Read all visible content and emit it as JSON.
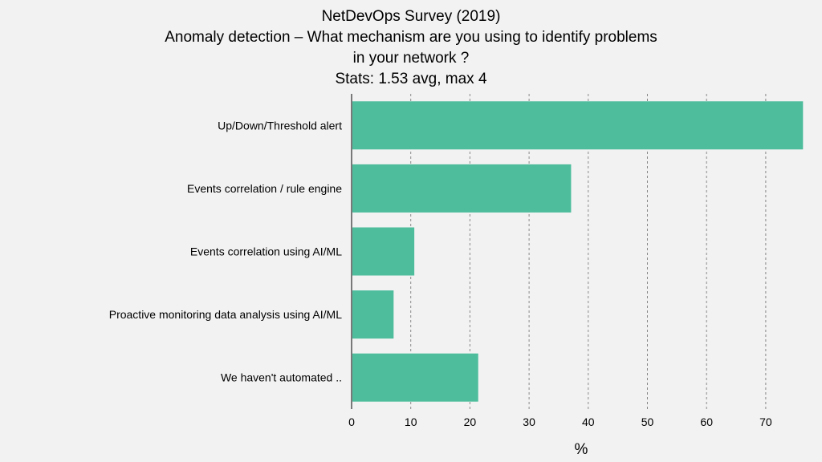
{
  "chart_data": {
    "type": "bar",
    "orientation": "horizontal",
    "title_lines": [
      "NetDevOps Survey (2019)",
      "Anomaly detection – What mechanism are you using to identify problems",
      "in your network ?",
      "Stats: 1.53 avg, max 4"
    ],
    "categories": [
      "Up/Down/Threshold alert",
      "Events correlation / rule engine",
      "Events correlation using AI/ML",
      "Proactive monitoring data analysis using AI/ML",
      "We haven't automated .."
    ],
    "values": [
      76.3,
      37.1,
      10.6,
      7.1,
      21.4
    ],
    "xlabel": "%",
    "xlim": [
      0,
      77
    ],
    "xticks": [
      0,
      10,
      20,
      30,
      40,
      50,
      60,
      70
    ],
    "grid": "vertical-dashed",
    "bar_color": "#4dbd9c",
    "grid_color": "#8a8a8a"
  }
}
